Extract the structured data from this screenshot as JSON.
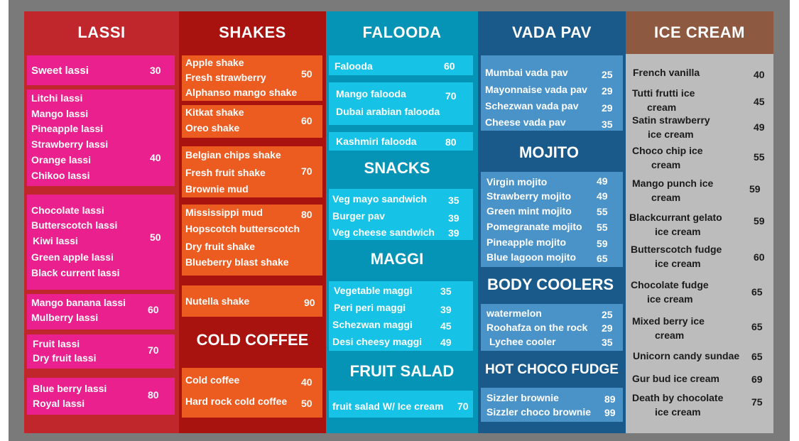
{
  "lassi": {
    "title": "LASSI",
    "groups": [
      {
        "items": [
          "Sweet lassi"
        ],
        "price": "30"
      },
      {
        "items": [
          "Litchi lassi",
          "Mango lassi",
          "Pineapple lassi",
          "Strawberry lassi",
          "Orange lassi",
          "Chikoo lassi"
        ],
        "price": "40"
      },
      {
        "items": [
          "Chocolate lassi",
          "Butterscotch lassi",
          "Kiwi lassi",
          "Green apple lassi",
          "Black current lassi"
        ],
        "price": "50"
      },
      {
        "items": [
          "Mango banana lassi",
          "Mulberry lassi"
        ],
        "price": "60"
      },
      {
        "items": [
          "Fruit lassi",
          "Dry fruit lassi"
        ],
        "price": "70"
      },
      {
        "items": [
          "Blue berry lassi",
          "Royal lassi"
        ],
        "price": "80"
      }
    ]
  },
  "shakes": {
    "title": "SHAKES",
    "groups": [
      {
        "items": [
          "Apple shake",
          "Fresh strawberry",
          "Alphanso mango shake"
        ],
        "price": "50"
      },
      {
        "items": [
          "Kitkat shake",
          "Oreo shake"
        ],
        "price": "60"
      },
      {
        "items": [
          "Belgian chips shake",
          "Fresh fruit shake",
          "Brownie mud"
        ],
        "price": "70"
      },
      {
        "items": [
          "Mississippi mud",
          "Hopscotch butterscotch",
          "Dry fruit shake",
          "Blueberry blast shake"
        ],
        "price": "80"
      },
      {
        "items": [
          "Nutella shake"
        ],
        "price": "90"
      }
    ]
  },
  "cold_coffee": {
    "title": "COLD COFFEE",
    "items": [
      {
        "name": "Cold coffee",
        "price": "40"
      },
      {
        "name": "Hard rock cold coffee",
        "price": "50"
      }
    ]
  },
  "falooda": {
    "title": "FALOODA",
    "items": [
      {
        "name": "Falooda",
        "price": "60"
      },
      {
        "name": "Mango falooda",
        "price": "70"
      },
      {
        "name": "Dubai arabian falooda",
        "price": ""
      },
      {
        "name": "Kashmiri falooda",
        "price": "80"
      }
    ]
  },
  "snacks": {
    "title": "SNACKS",
    "items": [
      {
        "name": "Veg mayo sandwich",
        "price": "35"
      },
      {
        "name": "Burger pav",
        "price": "39"
      },
      {
        "name": "Veg cheese sandwich",
        "price": "39"
      }
    ]
  },
  "maggi": {
    "title": "MAGGI",
    "items": [
      {
        "name": "Vegetable maggi",
        "price": "35"
      },
      {
        "name": "Peri peri maggi",
        "price": "39"
      },
      {
        "name": "Schezwan maggi",
        "price": "45"
      },
      {
        "name": "Desi cheesy maggi",
        "price": "49"
      }
    ]
  },
  "fruit_salad": {
    "title": "FRUIT SALAD",
    "items": [
      {
        "name": "fruit salad  W/ Ice cream",
        "price": "70"
      }
    ]
  },
  "vada_pav": {
    "title": "VADA PAV",
    "items": [
      {
        "name": "Mumbai vada pav",
        "price": "25"
      },
      {
        "name": "Mayonnaise vada pav",
        "price": "29"
      },
      {
        "name": "Schezwan vada pav",
        "price": "29"
      },
      {
        "name": "Cheese vada pav",
        "price": "35"
      }
    ]
  },
  "mojito": {
    "title": "MOJITO",
    "items": [
      {
        "name": "Virgin mojito",
        "price": "49"
      },
      {
        "name": "Strawberry mojito",
        "price": "49"
      },
      {
        "name": "Green mint mojito",
        "price": "55"
      },
      {
        "name": "Pomegranate mojito",
        "price": "55"
      },
      {
        "name": "Pineapple mojito",
        "price": "59"
      },
      {
        "name": "Blue lagoon mojito",
        "price": "65"
      }
    ]
  },
  "body_coolers": {
    "title": "BODY COOLERS",
    "items": [
      {
        "name": "watermelon",
        "price": "25"
      },
      {
        "name": "Roohafza on the rock",
        "price": "29"
      },
      {
        "name": "Lychee  cooler",
        "price": "35"
      }
    ]
  },
  "hot_choco_fudge": {
    "title": "HOT CHOCO FUDGE",
    "items": [
      {
        "name": "Sizzler brownie",
        "price": "89"
      },
      {
        "name": "Sizzler choco brownie",
        "price": "99"
      }
    ]
  },
  "ice_cream": {
    "title": "ICE CREAM",
    "items": [
      {
        "lines": [
          "French vanilla"
        ],
        "price": "40"
      },
      {
        "lines": [
          "Tutti frutti  ice",
          "cream"
        ],
        "price": "45"
      },
      {
        "lines": [
          "Satin strawberry",
          "ice cream"
        ],
        "price": "49"
      },
      {
        "lines": [
          "Choco chip ice",
          "cream"
        ],
        "price": "55"
      },
      {
        "lines": [
          "Mango punch ice",
          "cream"
        ],
        "price": "59"
      },
      {
        "lines": [
          "Blackcurrant gelato",
          "ice cream"
        ],
        "price": "59"
      },
      {
        "lines": [
          "Butterscotch fudge",
          "ice cream"
        ],
        "price": "60"
      },
      {
        "lines": [
          "Chocolate fudge",
          "ice cream"
        ],
        "price": "65"
      },
      {
        "lines": [
          "Mixed berry ice",
          "cream"
        ],
        "price": "65"
      },
      {
        "lines": [
          "Unicorn candy sundae"
        ],
        "price": "65"
      },
      {
        "lines": [
          "Gur bud ice cream"
        ],
        "price": "69"
      },
      {
        "lines": [
          "Death by chocolate",
          "ice cream"
        ],
        "price": "75"
      }
    ]
  },
  "colors": {
    "lassi_bg": "#c0272d",
    "lassi_box": "#e9208e",
    "shakes_bg": "#a8130f",
    "shakes_box": "#ec5b20",
    "falooda_bg": "#0594b5",
    "falooda_box": "#16c3e6",
    "vada_bg": "#1a5a8a",
    "vada_box": "#4a93c9",
    "ice_header": "#8d5a41",
    "ice_bg": "#bcbcbc"
  }
}
